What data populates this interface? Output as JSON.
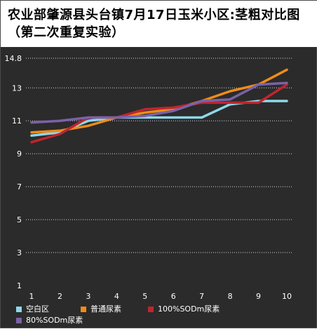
{
  "chart_data": {
    "type": "line",
    "title": "农业部肇源县头台镇7月17日玉米小区:茎粗对比图（第二次重复实验）",
    "xlabel": "",
    "ylabel": "",
    "categories": [
      "1",
      "2",
      "3",
      "4",
      "5",
      "6",
      "7",
      "8",
      "9",
      "10"
    ],
    "y_ticks": [
      "1",
      "3",
      "5",
      "7",
      "9",
      "11",
      "13",
      "14.8"
    ],
    "ylim": [
      1,
      14.8
    ],
    "grid": true,
    "legend_position": "bottom",
    "background": "#2b2b2b",
    "series": [
      {
        "name": "空白区",
        "color": "#8fd7ea",
        "values": [
          10.1,
          10.3,
          11.0,
          11.2,
          11.2,
          11.2,
          11.2,
          12.0,
          12.2,
          12.2
        ]
      },
      {
        "name": "普通尿素",
        "color": "#ef8c18",
        "values": [
          10.3,
          10.4,
          10.7,
          11.2,
          11.5,
          11.7,
          12.2,
          12.8,
          13.2,
          14.1
        ]
      },
      {
        "name": "100%SODm尿素",
        "color": "#c0252e",
        "values": [
          9.7,
          10.2,
          11.2,
          11.2,
          11.7,
          11.8,
          12.1,
          12.1,
          12.1,
          13.2
        ]
      },
      {
        "name": "80%SODm尿素",
        "color": "#7a62a8",
        "values": [
          10.9,
          11.0,
          11.2,
          11.2,
          11.3,
          11.6,
          12.2,
          12.3,
          13.2,
          13.3
        ]
      }
    ]
  }
}
